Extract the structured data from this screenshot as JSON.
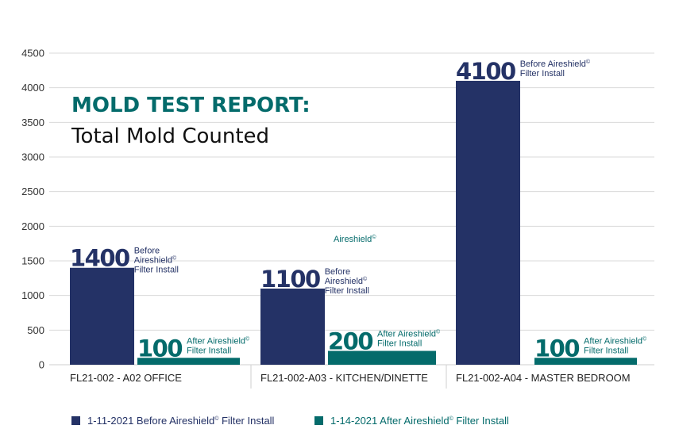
{
  "chart_data": {
    "type": "bar",
    "title": "MOLD TEST REPORT:",
    "subtitle": "Total Mold Counted",
    "xlabel": "",
    "ylabel": "",
    "ylim": [
      0,
      4500
    ],
    "yticks": [
      0,
      500,
      1000,
      1500,
      2000,
      2500,
      3000,
      3500,
      4000,
      4500
    ],
    "grid": true,
    "legend_position": "bottom",
    "categories": [
      "FL21-002 - A02 OFFICE",
      "FL21-002-A03 - KITCHEN/DINETTE",
      "FL21-002-A04 - MASTER BEDROOM"
    ],
    "series": [
      {
        "name": "1-11-2021 Before Aireshield© Filter Install",
        "legend_prefix": "1-11-2021 Before Aireshield",
        "legend_suffix": " Filter Install",
        "color": "#243266",
        "values": [
          1400,
          1100,
          4100
        ],
        "value_labels": [
          "1400",
          "1100",
          "4100"
        ],
        "annotations": [
          [
            "Before",
            "Aireshield©",
            "Filter Install"
          ],
          [
            "Before",
            "Aireshield©",
            "Filter Install"
          ],
          [
            "Before Aireshield©",
            "Filter Install"
          ]
        ]
      },
      {
        "name": "1-14-2021 After Aireshield© Filter Install",
        "legend_prefix": "1-14-2021 After Aireshield",
        "legend_suffix": " Filter Install",
        "color": "#046b6b",
        "values": [
          100,
          200,
          100
        ],
        "value_labels": [
          "100",
          "200",
          "100"
        ],
        "annotations": [
          [
            "After Aireshield©",
            "Filter Install"
          ],
          [
            "After Aireshield©",
            "Filter Install"
          ],
          [
            "After Aireshield©",
            "Filter Install"
          ]
        ]
      }
    ],
    "floating_annotation": "Aireshield©",
    "copyright_symbol": "©"
  },
  "colors": {
    "title": "#046b6b",
    "grid": "#d9d9d9"
  }
}
